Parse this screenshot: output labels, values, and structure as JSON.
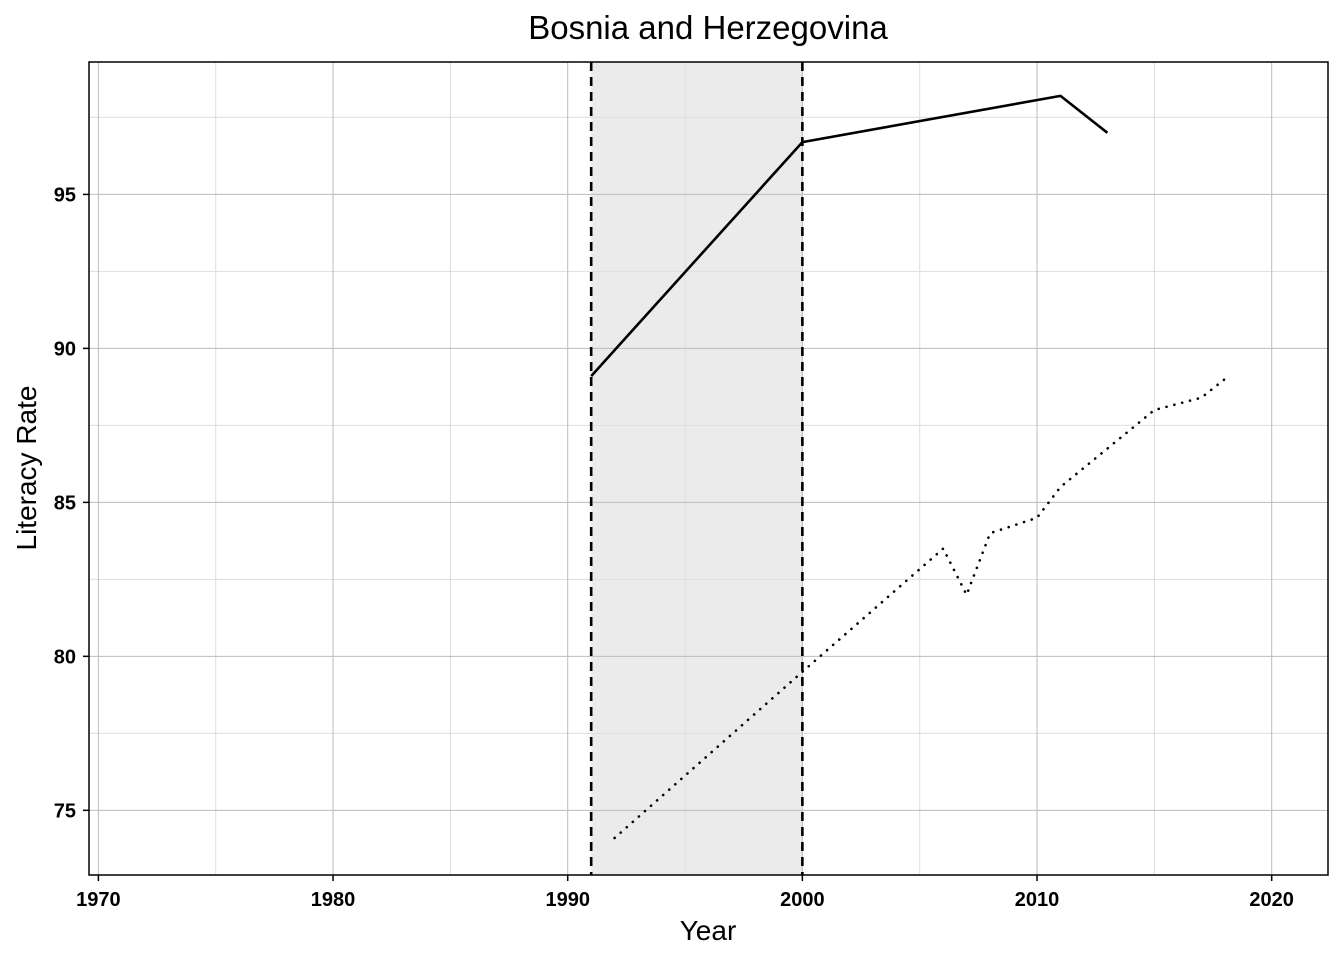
{
  "chart_data": {
    "type": "line",
    "title": "Bosnia and Herzegovina",
    "xlabel": "Year",
    "ylabel": "Literacy Rate",
    "xlim": [
      1969.6,
      2022.4
    ],
    "ylim": [
      72.9,
      99.3
    ],
    "x_ticks": [
      1970,
      1980,
      1990,
      2000,
      2010,
      2020
    ],
    "y_ticks": [
      75,
      80,
      85,
      90,
      95
    ],
    "grid": true,
    "shaded_region": {
      "x_start": 1991,
      "x_end": 2000,
      "color": "#ebebeb"
    },
    "vertical_lines": [
      {
        "x": 1991,
        "style": "dashed"
      },
      {
        "x": 2000,
        "style": "dashed"
      }
    ],
    "series": [
      {
        "style": "solid",
        "color": "#000000",
        "points": [
          {
            "x": 1991,
            "y": 89.1
          },
          {
            "x": 2000,
            "y": 96.7
          },
          {
            "x": 2011,
            "y": 98.2
          },
          {
            "x": 2013,
            "y": 97.0
          }
        ]
      },
      {
        "style": "dotted",
        "color": "#000000",
        "points": [
          {
            "x": 1992,
            "y": 74.1
          },
          {
            "x": 2000,
            "y": 79.5
          },
          {
            "x": 2006,
            "y": 83.5
          },
          {
            "x": 2007,
            "y": 82.0
          },
          {
            "x": 2008,
            "y": 84.0
          },
          {
            "x": 2010,
            "y": 84.5
          },
          {
            "x": 2011,
            "y": 85.5
          },
          {
            "x": 2015,
            "y": 88.0
          },
          {
            "x": 2017,
            "y": 88.4
          },
          {
            "x": 2018,
            "y": 89.0
          }
        ]
      }
    ]
  }
}
